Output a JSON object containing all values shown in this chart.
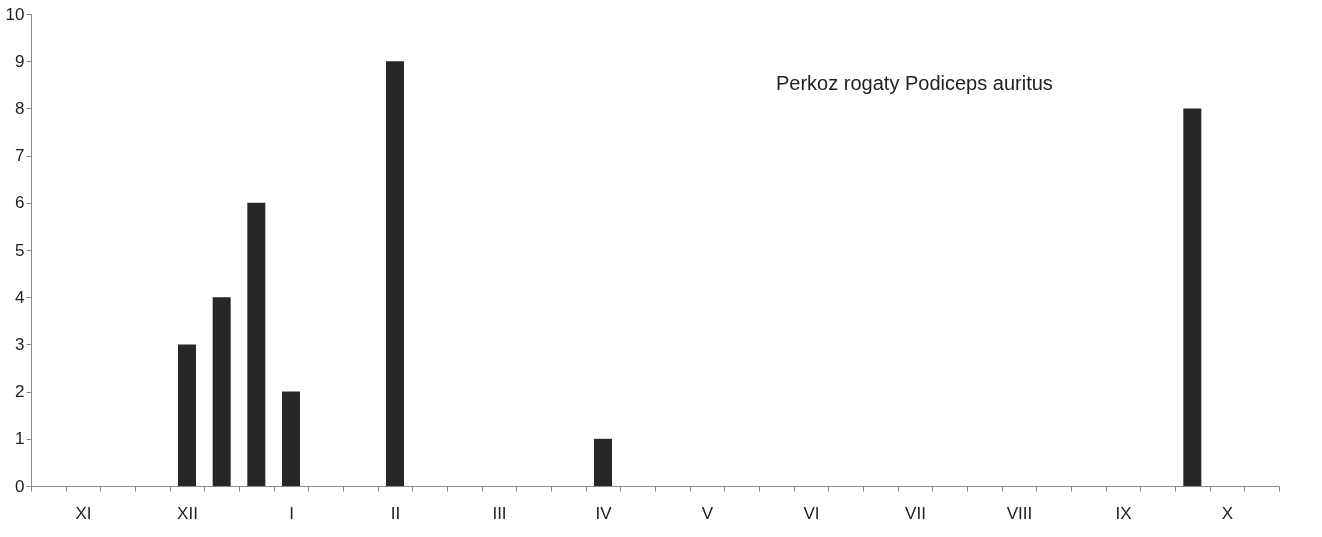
{
  "chart_data": {
    "type": "bar",
    "categories": [
      null,
      "XI",
      null,
      null,
      "XII",
      null,
      null,
      "I",
      null,
      null,
      "II",
      null,
      null,
      "III",
      null,
      null,
      "IV",
      null,
      null,
      "V",
      null,
      null,
      "VI",
      null,
      null,
      "VII",
      null,
      null,
      "VIII",
      null,
      null,
      "IX",
      null,
      null,
      "X",
      null
    ],
    "values": [
      0,
      0,
      0,
      0,
      3,
      4,
      6,
      2,
      0,
      0,
      9,
      0,
      0,
      0,
      0,
      0,
      1,
      0,
      0,
      0,
      0,
      0,
      0,
      0,
      0,
      0,
      0,
      0,
      0,
      0,
      0,
      0,
      0,
      8,
      0,
      0
    ],
    "color": "#262626",
    "ylim": [
      0,
      10
    ],
    "yticks": [
      0,
      1,
      2,
      3,
      4,
      5,
      6,
      7,
      8,
      9,
      10
    ],
    "grid": false,
    "annotations": [
      "Perkoz rogaty Podiceps auritus"
    ]
  }
}
